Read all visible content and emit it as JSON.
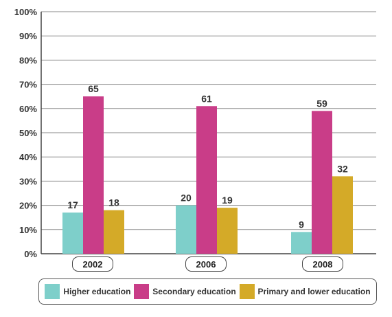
{
  "chart_data": {
    "type": "bar",
    "categories": [
      "2002",
      "2006",
      "2008"
    ],
    "series": [
      {
        "name": "Higher education",
        "values": [
          17,
          20,
          9
        ],
        "color": "#7ecfca"
      },
      {
        "name": "Secondary education",
        "values": [
          65,
          61,
          59
        ],
        "color": "#c93d88"
      },
      {
        "name": "Primary and lower education",
        "values": [
          18,
          19,
          32
        ],
        "color": "#d4aa28"
      }
    ],
    "yticks": [
      "0%",
      "10%",
      "20%",
      "30%",
      "40%",
      "50%",
      "60%",
      "70%",
      "80%",
      "90%",
      "100%"
    ],
    "ylim": [
      0,
      100
    ],
    "grid": true,
    "legend_position": "bottom"
  }
}
